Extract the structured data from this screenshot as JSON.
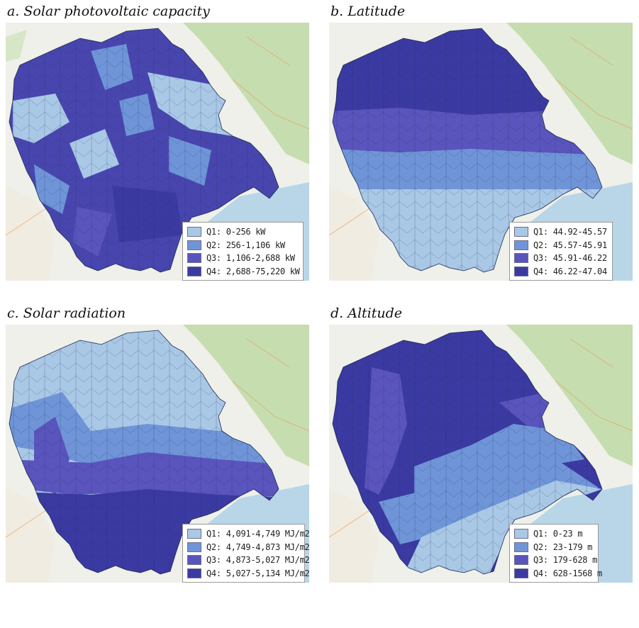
{
  "panels": [
    {
      "title": "a. Solar photovoltaic capacity",
      "legend": [
        {
          "label": "Q1: 0-256 kW",
          "color": "#a9c8e6"
        },
        {
          "label": "Q2: 256-1,106 kW",
          "color": "#6f95d8"
        },
        {
          "label": "Q3: 1,106-2,688 kW",
          "color": "#5a54bd"
        },
        {
          "label": "Q4: 2,688-75,220 kW",
          "color": "#3b3aa2"
        }
      ]
    },
    {
      "title": "b. Latitude",
      "legend": [
        {
          "label": "Q1: 44.92-45.57",
          "color": "#a9c8e6"
        },
        {
          "label": "Q2: 45.57-45.91",
          "color": "#6f95d8"
        },
        {
          "label": "Q3: 45.91-46.22",
          "color": "#5a54bd"
        },
        {
          "label": "Q4: 46.22-47.04",
          "color": "#3b3aa2"
        }
      ]
    },
    {
      "title": "c. Solar radiation",
      "legend": [
        {
          "label": "Q1: 4,091-4,749 MJ/m2",
          "color": "#a9c8e6"
        },
        {
          "label": "Q2: 4,749-4,873 MJ/m2",
          "color": "#6f95d8"
        },
        {
          "label": "Q3: 4,873-5,027 MJ/m2",
          "color": "#5a54bd"
        },
        {
          "label": "Q4: 5,027-5,134 MJ/m2",
          "color": "#3b3aa2"
        }
      ]
    },
    {
      "title": "d. Altitude",
      "legend": [
        {
          "label": "Q1: 0-23 m",
          "color": "#a9c8e6"
        },
        {
          "label": "Q2: 23-179 m",
          "color": "#6f95d8"
        },
        {
          "label": "Q3: 179-628 m",
          "color": "#5a54bd"
        },
        {
          "label": "Q4: 628-1568 m",
          "color": "#3b3aa2"
        }
      ]
    }
  ]
}
